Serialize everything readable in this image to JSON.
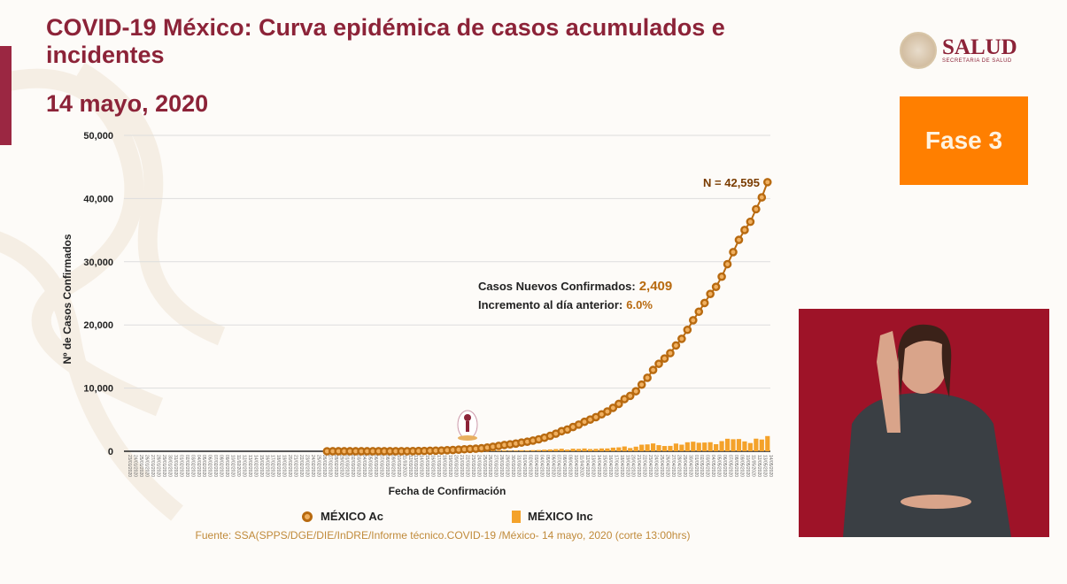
{
  "header": {
    "title": "COVID-19 México: Curva epidémica de casos acumulados e incidentes",
    "date": "14 mayo, 2020"
  },
  "logo": {
    "name": "SALUD",
    "subtitle": "SECRETARIA DE SALUD"
  },
  "phase": {
    "label": "Fase 3"
  },
  "colors": {
    "accent": "#8c2338",
    "phase": "#ff7f00",
    "cumulative": "#b86a10",
    "incident": "#f4a22a"
  },
  "source": "Fuente: SSA(SPPS/DGE/DIE/InDRE/Informe técnico.COVID-19 /México- 14 mayo, 2020 (corte 13:00hrs)",
  "chart_data": {
    "type": "line",
    "title": "COVID-19 México: Curva epidémica de casos acumulados e incidentes",
    "xlabel": "Fecha de Confirmación",
    "ylabel": "Nº de Casos Confirmados",
    "ylim": [
      0,
      50000
    ],
    "yticks": [
      "0",
      "10,000",
      "20,000",
      "30,000",
      "40,000",
      "50,000"
    ],
    "ytick_values": [
      0,
      10000,
      20000,
      30000,
      40000,
      50000
    ],
    "x_axis_start": "2020-01-23",
    "x_axis_days": 113,
    "series_start": "2020-02-27",
    "grid": true,
    "legend": "bottom",
    "series": [
      {
        "name": "MÉXICO Ac",
        "type": "line",
        "values": [
          1,
          2,
          4,
          5,
          5,
          5,
          5,
          5,
          6,
          7,
          7,
          7,
          7,
          8,
          12,
          26,
          41,
          53,
          82,
          93,
          118,
          164,
          203,
          251,
          316,
          367,
          405,
          475,
          585,
          717,
          848,
          993,
          1094,
          1215,
          1378,
          1510,
          1688,
          1890,
          2143,
          2439,
          2785,
          3181,
          3441,
          3844,
          4219,
          4661,
          5014,
          5399,
          5847,
          6297,
          6875,
          7497,
          8261,
          8772,
          9501,
          10544,
          11633,
          12872,
          13842,
          14677,
          15529,
          16752,
          17799,
          19224,
          20739,
          22088,
          23471,
          24905,
          26025,
          27634,
          29616,
          31522,
          33460,
          35022,
          36327,
          38324,
          40186,
          42595
        ]
      },
      {
        "name": "MÉXICO Inc",
        "type": "bar",
        "values": "daily difference of MÉXICO Ac"
      }
    ],
    "annotations": {
      "total": "N = 42,595",
      "new_label": "Casos Nuevos Confirmados:",
      "new_value": "2,409",
      "inc_label": "Incremento al día anterior:",
      "inc_value": "6.0%"
    }
  }
}
